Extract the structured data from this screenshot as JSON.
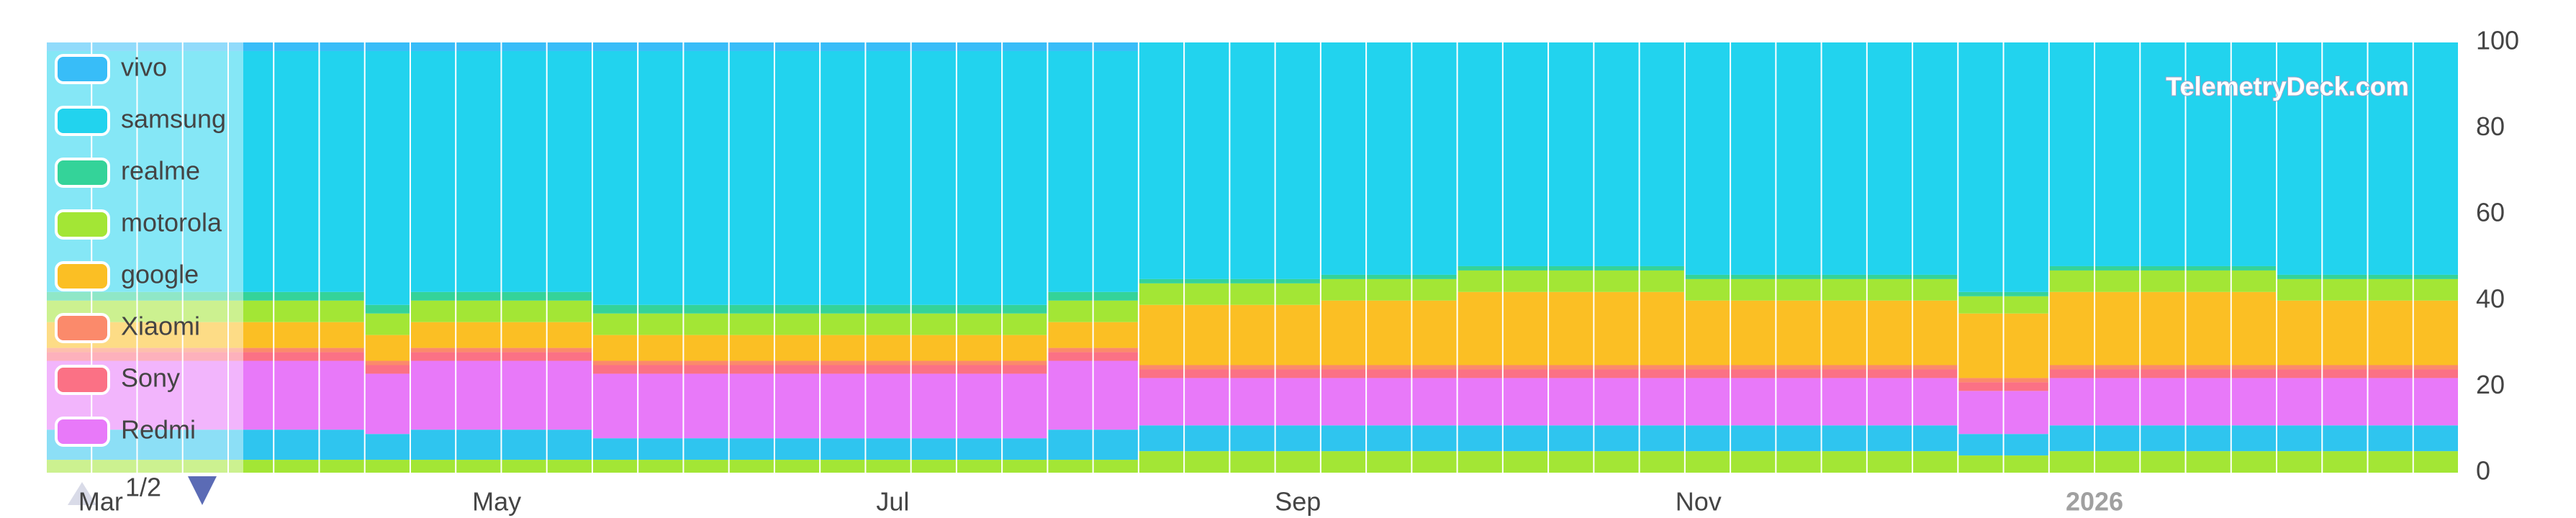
{
  "chart_data": {
    "type": "stacked_bar",
    "categories": [
      null,
      null,
      null,
      null,
      null,
      null,
      null,
      null,
      null,
      null,
      null,
      null,
      null,
      null,
      null,
      null,
      null,
      null,
      null,
      null,
      null,
      null,
      null,
      null,
      null,
      null,
      null,
      null,
      null,
      null,
      null,
      null,
      null,
      null,
      null,
      null,
      null,
      null,
      null,
      null,
      null,
      null,
      null,
      null,
      null,
      null,
      null,
      null,
      null,
      null,
      null,
      null,
      null
    ],
    "series": [
      {
        "name": "vivo",
        "color": "#38bdf8",
        "values": [
          2,
          2,
          2,
          2,
          2,
          2,
          2,
          2,
          2,
          2,
          2,
          2,
          2,
          2,
          2,
          2,
          2,
          2,
          2,
          2,
          2,
          2,
          2,
          2,
          0,
          0,
          0,
          0,
          0,
          0,
          0,
          0,
          0,
          0,
          0,
          0,
          0,
          0,
          0,
          0,
          0,
          0,
          0,
          0,
          0,
          0,
          0,
          0,
          0,
          0,
          0,
          0,
          0
        ]
      },
      {
        "name": "samsung",
        "color": "#22d3ee",
        "values": [
          56,
          56,
          56,
          56,
          56,
          56,
          56,
          59,
          56,
          56,
          56,
          56,
          59,
          59,
          59,
          59,
          59,
          59,
          59,
          59,
          59,
          59,
          56,
          56,
          55,
          55,
          55,
          55,
          54,
          54,
          54,
          52,
          52,
          52,
          52,
          52,
          54,
          54,
          54,
          54,
          54,
          54,
          58,
          58,
          52,
          52,
          52,
          52,
          52,
          54,
          54,
          54,
          54
        ]
      },
      {
        "name": "realme",
        "color": "#34d399",
        "values": [
          2,
          2,
          2,
          2,
          2,
          2,
          2,
          2,
          2,
          2,
          2,
          2,
          2,
          2,
          2,
          2,
          2,
          2,
          2,
          2,
          2,
          2,
          2,
          2,
          1,
          1,
          1,
          1,
          1,
          1,
          1,
          1,
          1,
          1,
          1,
          1,
          1,
          1,
          1,
          1,
          1,
          1,
          1,
          1,
          1,
          1,
          1,
          1,
          1,
          1,
          1,
          1,
          1
        ]
      },
      {
        "name": "motorola",
        "color": "#a3e635",
        "values": [
          5,
          5,
          5,
          5,
          5,
          5,
          5,
          5,
          5,
          5,
          5,
          5,
          5,
          5,
          5,
          5,
          5,
          5,
          5,
          5,
          5,
          5,
          5,
          5,
          5,
          5,
          5,
          5,
          5,
          5,
          5,
          5,
          5,
          5,
          5,
          5,
          5,
          5,
          5,
          5,
          5,
          5,
          4,
          4,
          5,
          5,
          5,
          5,
          5,
          5,
          5,
          5,
          5
        ]
      },
      {
        "name": "google",
        "color": "#fbbf24",
        "values": [
          6,
          6,
          6,
          6,
          6,
          6,
          6,
          6,
          6,
          6,
          6,
          6,
          6,
          6,
          6,
          6,
          6,
          6,
          6,
          6,
          6,
          6,
          6,
          6,
          14,
          14,
          14,
          14,
          15,
          15,
          15,
          17,
          17,
          17,
          17,
          17,
          15,
          15,
          15,
          15,
          15,
          15,
          15,
          15,
          17,
          17,
          17,
          17,
          17,
          15,
          15,
          15,
          15
        ]
      },
      {
        "name": "Xiaomi",
        "color": "#fb8a6b",
        "values": [
          1,
          1,
          1,
          1,
          1,
          1,
          1,
          1,
          1,
          1,
          1,
          1,
          1,
          1,
          1,
          1,
          1,
          1,
          1,
          1,
          1,
          1,
          1,
          1,
          1,
          1,
          1,
          1,
          1,
          1,
          1,
          1,
          1,
          1,
          1,
          1,
          1,
          1,
          1,
          1,
          1,
          1,
          1,
          1,
          1,
          1,
          1,
          1,
          1,
          1,
          1,
          1,
          1
        ]
      },
      {
        "name": "Sony",
        "color": "#fb7185",
        "values": [
          2,
          2,
          2,
          2,
          2,
          2,
          2,
          2,
          2,
          2,
          2,
          2,
          2,
          2,
          2,
          2,
          2,
          2,
          2,
          2,
          2,
          2,
          2,
          2,
          2,
          2,
          2,
          2,
          2,
          2,
          2,
          2,
          2,
          2,
          2,
          2,
          2,
          2,
          2,
          2,
          2,
          2,
          2,
          2,
          2,
          2,
          2,
          2,
          2,
          2,
          2,
          2,
          2
        ]
      },
      {
        "name": "Redmi",
        "color": "#e879f9",
        "values": [
          16,
          16,
          16,
          16,
          16,
          16,
          16,
          14,
          16,
          16,
          16,
          16,
          15,
          15,
          15,
          15,
          15,
          15,
          15,
          15,
          15,
          15,
          16,
          16,
          11,
          11,
          11,
          11,
          11,
          11,
          11,
          11,
          11,
          11,
          11,
          11,
          11,
          11,
          11,
          11,
          11,
          11,
          10,
          10,
          11,
          11,
          11,
          11,
          11,
          11,
          11,
          11,
          11
        ]
      },
      {
        "color": "#2fc5ef",
        "values": [
          7,
          7,
          7,
          7,
          7,
          7,
          7,
          6,
          7,
          7,
          7,
          7,
          5,
          5,
          5,
          5,
          5,
          5,
          5,
          5,
          5,
          5,
          7,
          7,
          6,
          6,
          6,
          6,
          6,
          6,
          6,
          6,
          6,
          6,
          6,
          6,
          6,
          6,
          6,
          6,
          6,
          6,
          5,
          5,
          6,
          6,
          6,
          6,
          6,
          6,
          6,
          6,
          6
        ]
      },
      {
        "color": "#a3e635",
        "values": [
          3,
          3,
          3,
          3,
          3,
          3,
          3,
          3,
          3,
          3,
          3,
          3,
          3,
          3,
          3,
          3,
          3,
          3,
          3,
          3,
          3,
          3,
          3,
          3,
          5,
          5,
          5,
          5,
          5,
          5,
          5,
          5,
          5,
          5,
          5,
          5,
          5,
          5,
          5,
          5,
          5,
          5,
          4,
          4,
          5,
          5,
          5,
          5,
          5,
          5,
          5,
          5,
          5
        ]
      }
    ],
    "ylim": [
      0,
      100
    ],
    "yticks": [
      0,
      20,
      40,
      60,
      80,
      100
    ],
    "xlim": [
      0,
      53
    ],
    "xticks": [
      {
        "value": 1.2,
        "label": "Mar"
      },
      {
        "value": 9.9,
        "label": "May"
      },
      {
        "value": 18.6,
        "label": "Jul"
      },
      {
        "value": 27.5,
        "label": "Sep"
      },
      {
        "value": 36.3,
        "label": "Nov"
      },
      {
        "value": 45.0,
        "label": "2026"
      }
    ],
    "legend_page": "1/2",
    "watermark": "TelemetryDeck.com"
  }
}
